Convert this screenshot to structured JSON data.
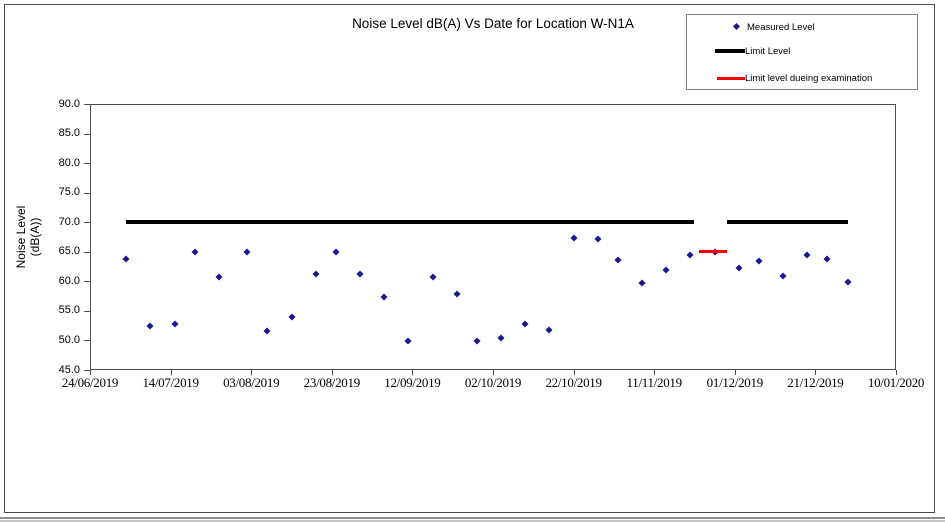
{
  "chart_data": {
    "type": "scatter",
    "title": "Noise Level dB(A) Vs Date for Location W-N1A",
    "ylabel_lines": [
      "Noise Level",
      "(dB(A))"
    ],
    "ylim": [
      45.0,
      90.0
    ],
    "ytick_step": 5.0,
    "y_tick_labels": [
      "90.0",
      "85.0",
      "80.0",
      "75.0",
      "70.0",
      "65.0",
      "60.0",
      "55.0",
      "50.0",
      "45.0"
    ],
    "x_tick_labels": [
      "24/06/2019",
      "14/07/2019",
      "03/08/2019",
      "23/08/2019",
      "12/09/2019",
      "02/10/2019",
      "22/10/2019",
      "11/11/2019",
      "01/12/2019",
      "21/12/2019",
      "10/01/2020"
    ],
    "x_axis_start_date": "24/06/2019",
    "x_axis_span_days": 200,
    "x_tick_interval_days": 20,
    "grid": "off",
    "legend_position": "top-right",
    "series": [
      {
        "name": "Measured Level",
        "type": "scatter",
        "marker": "diamond",
        "color": "#1a1a8c",
        "points": [
          {
            "date": "03/07/2019",
            "day": 9,
            "value": 63.8
          },
          {
            "date": "09/07/2019",
            "day": 15,
            "value": 52.5
          },
          {
            "date": "15/07/2019",
            "day": 21,
            "value": 52.8
          },
          {
            "date": "20/07/2019",
            "day": 26,
            "value": 65.0
          },
          {
            "date": "26/07/2019",
            "day": 32,
            "value": 60.8
          },
          {
            "date": "02/08/2019",
            "day": 39,
            "value": 64.9
          },
          {
            "date": "07/08/2019",
            "day": 44,
            "value": 51.6
          },
          {
            "date": "13/08/2019",
            "day": 50,
            "value": 54.0
          },
          {
            "date": "19/08/2019",
            "day": 56,
            "value": 61.2
          },
          {
            "date": "24/08/2019",
            "day": 61,
            "value": 64.9
          },
          {
            "date": "30/08/2019",
            "day": 67,
            "value": 61.2
          },
          {
            "date": "05/09/2019",
            "day": 73,
            "value": 57.3
          },
          {
            "date": "11/09/2019",
            "day": 79,
            "value": 49.9
          },
          {
            "date": "17/09/2019",
            "day": 85,
            "value": 60.7
          },
          {
            "date": "23/09/2019",
            "day": 91,
            "value": 57.9
          },
          {
            "date": "28/09/2019",
            "day": 96,
            "value": 49.9
          },
          {
            "date": "04/10/2019",
            "day": 102,
            "value": 50.4
          },
          {
            "date": "10/10/2019",
            "day": 108,
            "value": 52.7
          },
          {
            "date": "16/10/2019",
            "day": 114,
            "value": 51.8
          },
          {
            "date": "22/10/2019",
            "day": 120,
            "value": 67.4
          },
          {
            "date": "28/10/2019",
            "day": 126,
            "value": 67.1
          },
          {
            "date": "02/11/2019",
            "day": 131,
            "value": 63.6
          },
          {
            "date": "08/11/2019",
            "day": 137,
            "value": 59.7
          },
          {
            "date": "14/11/2019",
            "day": 143,
            "value": 62.0
          },
          {
            "date": "20/11/2019",
            "day": 149,
            "value": 64.4
          },
          {
            "date": "26/11/2019",
            "day": 155,
            "value": 65.0
          },
          {
            "date": "02/12/2019",
            "day": 161,
            "value": 62.3
          },
          {
            "date": "07/12/2019",
            "day": 166,
            "value": 63.5
          },
          {
            "date": "13/12/2019",
            "day": 172,
            "value": 60.9
          },
          {
            "date": "19/12/2019",
            "day": 178,
            "value": 64.4
          },
          {
            "date": "24/12/2019",
            "day": 183,
            "value": 63.7
          },
          {
            "date": "29/12/2019",
            "day": 188,
            "value": 59.9
          }
        ]
      },
      {
        "name": "Limit Level",
        "type": "line",
        "color": "#000000",
        "segments": [
          {
            "start_date": "03/07/2019",
            "end_date": "21/11/2019",
            "start_day": 9,
            "end_day": 150,
            "value": 70.0
          },
          {
            "start_date": "29/11/2019",
            "end_date": "29/12/2019",
            "start_day": 158,
            "end_day": 188,
            "value": 70.0
          }
        ]
      },
      {
        "name": "Limit level dueing examination",
        "type": "line",
        "color": "#ff0000",
        "segments": [
          {
            "start_date": "22/11/2019",
            "end_date": "29/11/2019",
            "start_day": 151,
            "end_day": 158,
            "value": 65.0
          }
        ]
      }
    ]
  }
}
